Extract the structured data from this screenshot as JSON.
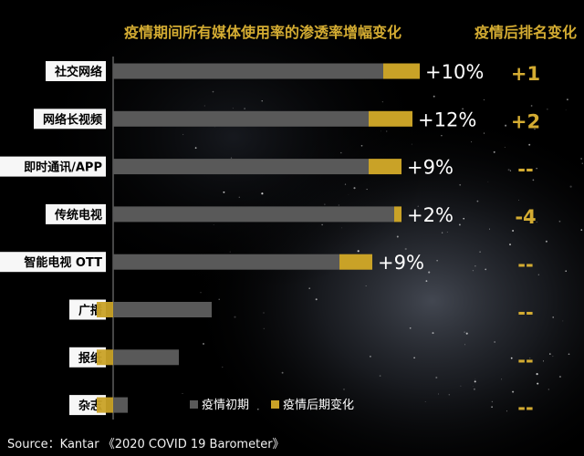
{
  "chart_data": {
    "type": "bar",
    "title": "疫情期间所有媒体使用率的渗透率增幅变化",
    "rank_header": "疫情后排名变化",
    "categories": [
      "社交网络",
      "网络长视频",
      "即时通讯/APP",
      "传统电视",
      "智能电视 OTT",
      "广播",
      "报纸",
      "杂志"
    ],
    "series": [
      {
        "name": "疫情初期",
        "color": "#595959",
        "values": [
          0.74,
          0.7,
          0.7,
          0.77,
          0.62,
          0.27,
          0.18,
          0.04
        ]
      },
      {
        "name": "疫情后期变化",
        "color": "#c9a227",
        "values": [
          0.1,
          0.12,
          0.09,
          0.02,
          0.09,
          0,
          0,
          0
        ]
      }
    ],
    "value_labels": [
      "+10%",
      "+12%",
      "+9%",
      "+2%",
      "+9%",
      "",
      "",
      ""
    ],
    "rank_changes": [
      "+1",
      "+2",
      "--",
      "-4",
      "--",
      "--",
      "--",
      "--"
    ],
    "xlim": [
      0,
      1
    ]
  },
  "colors": {
    "background": "#000000",
    "title": "#d4ac32",
    "gold": "#c9a227",
    "gray": "#595959",
    "text": "#ffffff",
    "label_bg": "#f7f7f7"
  },
  "source": "Source：Kantar 《2020 COVID 19 Barometer》"
}
